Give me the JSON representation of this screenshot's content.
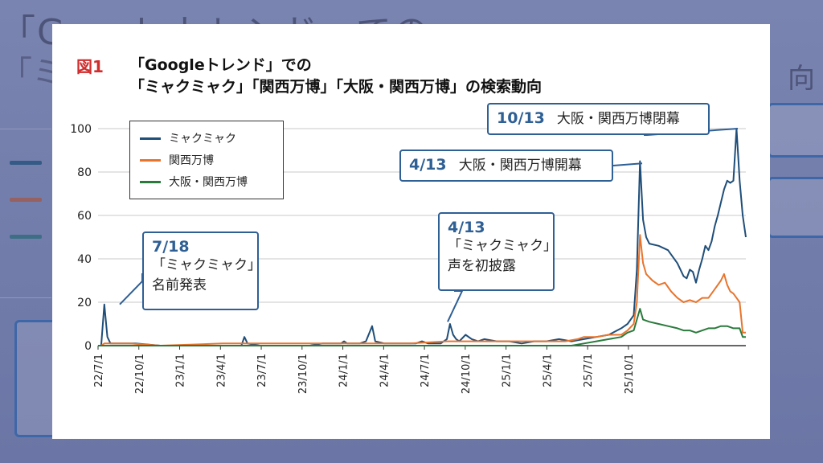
{
  "figure_label": "図1",
  "title_line1": "「Googleトレンド」での",
  "title_line2": "「ミャクミャク」「関西万博」「大阪・関西万博」の検索動向",
  "colors": {
    "myakumyaku": "#1f4e79",
    "kansai": "#e8742c",
    "osaka": "#2a7a3c",
    "callout_border": "#2e5f95",
    "figure_label": "#d02d2d"
  },
  "annotations": [
    {
      "date": "10/13",
      "text": "大阪・関西万博閉幕"
    },
    {
      "date": "4/13",
      "text": "大阪・関西万博開幕"
    },
    {
      "date": "4/13",
      "line1": "「ミャクミャク」",
      "line2": "声を初披露"
    },
    {
      "date": "7/18",
      "line1": "「ミャクミャク」",
      "line2": "名前発表"
    }
  ],
  "chart_data": {
    "type": "line",
    "title": "「Googleトレンド」での「ミャクミャク」「関西万博」「大阪・関西万博」の検索動向",
    "xlabel": "",
    "ylabel": "",
    "ylim": [
      0,
      100
    ],
    "yticks": [
      0,
      20,
      40,
      60,
      80,
      100
    ],
    "x_tick_labels": [
      "22/7/1",
      "22/10/1",
      "23/1/1",
      "23/4/1",
      "23/7/1",
      "23/10/1",
      "24/1/1",
      "24/4/1",
      "24/7/1",
      "24/10/1",
      "25/1/1",
      "25/4/1",
      "25/7/1",
      "25/10/1"
    ],
    "grid": "horizontal",
    "legend_position": "top-left",
    "x_unit": "weeks since 2022-07-01",
    "series": [
      {
        "name": "ミャクミャク",
        "color": "#1f4e79",
        "points": [
          [
            0,
            0
          ],
          [
            1,
            0
          ],
          [
            2,
            19
          ],
          [
            3,
            4
          ],
          [
            4,
            1
          ],
          [
            6,
            1
          ],
          [
            8,
            1
          ],
          [
            12,
            1
          ],
          [
            20,
            0
          ],
          [
            40,
            0
          ],
          [
            46,
            0
          ],
          [
            47,
            4
          ],
          [
            48,
            1
          ],
          [
            52,
            0
          ],
          [
            68,
            0
          ],
          [
            72,
            1
          ],
          [
            78,
            1
          ],
          [
            79,
            2
          ],
          [
            80,
            1
          ],
          [
            84,
            1
          ],
          [
            86,
            2
          ],
          [
            88,
            9
          ],
          [
            89,
            2
          ],
          [
            92,
            1
          ],
          [
            102,
            1
          ],
          [
            104,
            2
          ],
          [
            106,
            1
          ],
          [
            108,
            1
          ],
          [
            110,
            1
          ],
          [
            112,
            3
          ],
          [
            113,
            10
          ],
          [
            114,
            5
          ],
          [
            115,
            3
          ],
          [
            116,
            2
          ],
          [
            118,
            5
          ],
          [
            120,
            3
          ],
          [
            122,
            2
          ],
          [
            124,
            3
          ],
          [
            128,
            2
          ],
          [
            132,
            2
          ],
          [
            136,
            1
          ],
          [
            140,
            2
          ],
          [
            144,
            2
          ],
          [
            148,
            3
          ],
          [
            152,
            2
          ],
          [
            156,
            3
          ],
          [
            160,
            4
          ],
          [
            164,
            5
          ],
          [
            168,
            8
          ],
          [
            170,
            10
          ],
          [
            172,
            14
          ],
          [
            173,
            35
          ],
          [
            174,
            85
          ],
          [
            175,
            58
          ],
          [
            176,
            50
          ],
          [
            177,
            47
          ],
          [
            180,
            46
          ],
          [
            183,
            44
          ],
          [
            186,
            38
          ],
          [
            188,
            32
          ],
          [
            189,
            31
          ],
          [
            190,
            35
          ],
          [
            191,
            34
          ],
          [
            192,
            29
          ],
          [
            193,
            35
          ],
          [
            194,
            40
          ],
          [
            195,
            46
          ],
          [
            196,
            44
          ],
          [
            197,
            48
          ],
          [
            198,
            55
          ],
          [
            199,
            60
          ],
          [
            200,
            66
          ],
          [
            201,
            72
          ],
          [
            202,
            76
          ],
          [
            203,
            75
          ],
          [
            204,
            76
          ],
          [
            205,
            100
          ],
          [
            206,
            76
          ],
          [
            207,
            60
          ],
          [
            208,
            50
          ]
        ]
      },
      {
        "name": "関西万博",
        "color": "#e8742c",
        "points": [
          [
            0,
            0
          ],
          [
            1,
            0
          ],
          [
            2,
            1
          ],
          [
            3,
            1
          ],
          [
            10,
            1
          ],
          [
            20,
            0
          ],
          [
            40,
            1
          ],
          [
            60,
            1
          ],
          [
            80,
            1
          ],
          [
            90,
            1
          ],
          [
            100,
            1
          ],
          [
            112,
            2
          ],
          [
            120,
            2
          ],
          [
            130,
            2
          ],
          [
            140,
            2
          ],
          [
            150,
            2
          ],
          [
            154,
            3
          ],
          [
            156,
            4
          ],
          [
            160,
            4
          ],
          [
            164,
            5
          ],
          [
            168,
            5
          ],
          [
            170,
            7
          ],
          [
            172,
            10
          ],
          [
            173,
            20
          ],
          [
            174,
            51
          ],
          [
            175,
            38
          ],
          [
            176,
            33
          ],
          [
            178,
            30
          ],
          [
            180,
            28
          ],
          [
            182,
            29
          ],
          [
            184,
            25
          ],
          [
            186,
            22
          ],
          [
            188,
            20
          ],
          [
            190,
            21
          ],
          [
            192,
            20
          ],
          [
            194,
            22
          ],
          [
            196,
            22
          ],
          [
            198,
            26
          ],
          [
            200,
            30
          ],
          [
            201,
            33
          ],
          [
            202,
            28
          ],
          [
            203,
            25
          ],
          [
            204,
            24
          ],
          [
            205,
            22
          ],
          [
            206,
            20
          ],
          [
            207,
            6
          ],
          [
            208,
            6
          ]
        ]
      },
      {
        "name": "大阪・関西万博",
        "color": "#2a7a3c",
        "points": [
          [
            0,
            0
          ],
          [
            1,
            0
          ],
          [
            10,
            0
          ],
          [
            40,
            0
          ],
          [
            80,
            0
          ],
          [
            100,
            0
          ],
          [
            120,
            0
          ],
          [
            140,
            0
          ],
          [
            152,
            0
          ],
          [
            156,
            1
          ],
          [
            160,
            2
          ],
          [
            164,
            3
          ],
          [
            168,
            4
          ],
          [
            170,
            6
          ],
          [
            172,
            7
          ],
          [
            173,
            12
          ],
          [
            174,
            17
          ],
          [
            175,
            12
          ],
          [
            177,
            11
          ],
          [
            180,
            10
          ],
          [
            183,
            9
          ],
          [
            186,
            8
          ],
          [
            188,
            7
          ],
          [
            190,
            7
          ],
          [
            192,
            6
          ],
          [
            194,
            7
          ],
          [
            196,
            8
          ],
          [
            198,
            8
          ],
          [
            200,
            9
          ],
          [
            202,
            9
          ],
          [
            204,
            8
          ],
          [
            206,
            8
          ],
          [
            207,
            4
          ],
          [
            208,
            4
          ]
        ]
      }
    ]
  }
}
